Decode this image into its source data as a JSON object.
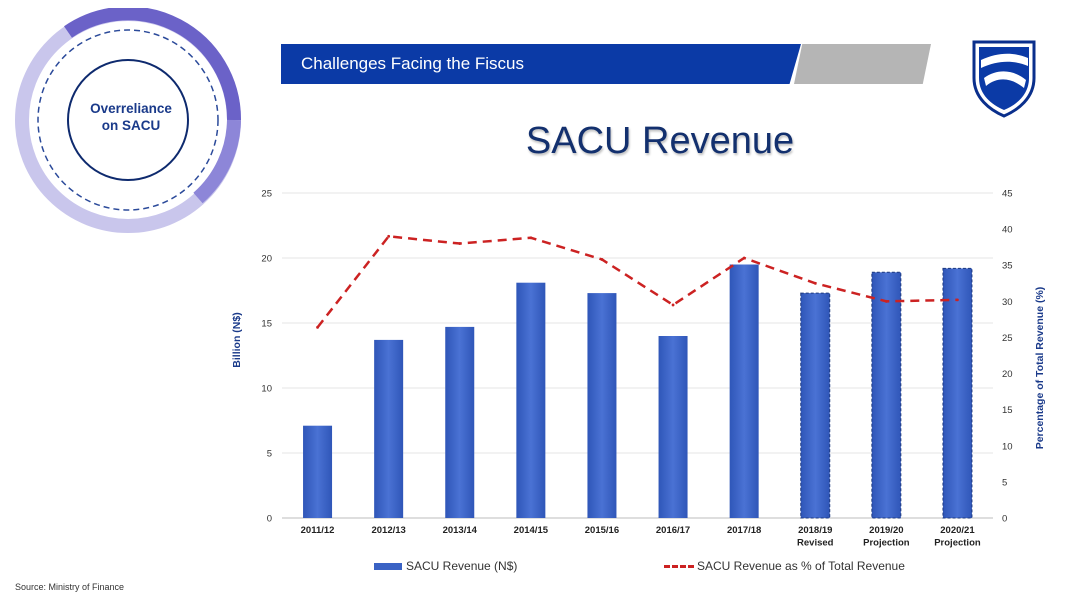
{
  "header": {
    "banner_title": "Challenges Facing the Fiscus",
    "badge_line1": "Overreliance",
    "badge_line2": "on SACU",
    "logo_icon": "shield-logo-icon"
  },
  "colors": {
    "banner_blue": "#0b3aa6",
    "bar_blue": "#3a62c4",
    "line_red": "#cc2222",
    "title_navy": "#13306e"
  },
  "chart_data": {
    "type": "bar",
    "title": "SACU Revenue",
    "categories": [
      "2011/12",
      "2012/13",
      "2013/14",
      "2014/15",
      "2015/16",
      "2016/17",
      "2017/18",
      "2018/19\nRevised",
      "2019/20\nProjection",
      "2020/21\nProjection"
    ],
    "series": [
      {
        "name": "SACU Revenue (N$)",
        "type": "bar",
        "axis": "left",
        "values": [
          7.1,
          13.7,
          14.7,
          18.1,
          17.3,
          14.0,
          19.5,
          17.3,
          18.9,
          19.2
        ]
      },
      {
        "name": "SACU Revenue as % of Total Revenue",
        "type": "line",
        "style": "dashed",
        "axis": "right",
        "values": [
          26.4,
          39.0,
          38.0,
          38.8,
          35.8,
          29.5,
          36.0,
          32.5,
          30.0,
          30.2
        ]
      }
    ],
    "ylabel": "Billion (N$)",
    "ylabel_right": "Percentage of Total Revenue (%)",
    "ylim": [
      0,
      25
    ],
    "ylim_right": [
      0,
      45
    ],
    "yticks": [
      "0",
      "5",
      "10",
      "15",
      "20",
      "25"
    ],
    "yticks_right": [
      "0",
      "5",
      "10",
      "15",
      "20",
      "25",
      "30",
      "35",
      "40",
      "45"
    ],
    "grid": true,
    "legend_position": "bottom"
  },
  "footer": {
    "source": "Source: Ministry of Finance"
  }
}
